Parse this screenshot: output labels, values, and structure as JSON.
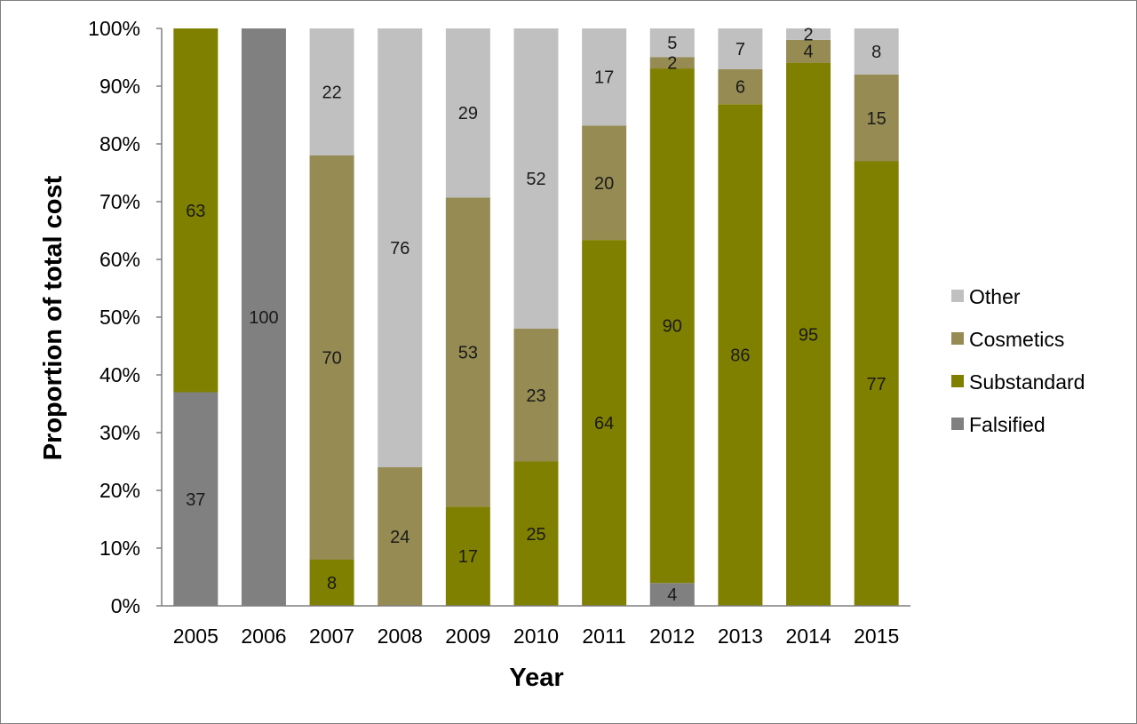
{
  "chart_data": {
    "type": "bar",
    "stacked": true,
    "percent": true,
    "title": "",
    "xlabel": "Year",
    "ylabel": "Proportion of total cost",
    "ylim": [
      0,
      100
    ],
    "yticks": [
      0,
      10,
      20,
      30,
      40,
      50,
      60,
      70,
      80,
      90,
      100
    ],
    "ytick_labels": [
      "0%",
      "10%",
      "20%",
      "30%",
      "40%",
      "50%",
      "60%",
      "70%",
      "80%",
      "90%",
      "100%"
    ],
    "grid": false,
    "legend": "right",
    "categories": [
      "2005",
      "2006",
      "2007",
      "2008",
      "2009",
      "2010",
      "2011",
      "2012",
      "2013",
      "2014",
      "2015"
    ],
    "series": [
      {
        "name": "Falsified",
        "color": "#808080",
        "values": [
          37,
          100,
          0,
          0,
          0,
          0,
          0,
          4,
          0,
          0,
          0
        ],
        "labels": [
          "37",
          "100",
          "",
          "",
          "",
          "",
          "",
          "4",
          "",
          "",
          ""
        ]
      },
      {
        "name": "Substandard",
        "color": "#808000",
        "values": [
          63,
          0,
          8,
          0,
          17,
          25,
          64,
          90,
          86,
          95,
          77
        ],
        "labels": [
          "63",
          "",
          "8",
          "",
          "17",
          "25",
          "64",
          "90",
          "86",
          "95",
          "77"
        ]
      },
      {
        "name": "Cosmetics",
        "color": "#958b53",
        "values": [
          0,
          0,
          70,
          24,
          53,
          23,
          20,
          2,
          6,
          4,
          15
        ],
        "labels": [
          "",
          "",
          "70",
          "24",
          "53",
          "23",
          "20",
          "2",
          "6",
          "4",
          "15"
        ]
      },
      {
        "name": "Other",
        "color": "#c0c0c0",
        "values": [
          0,
          0,
          22,
          76,
          29,
          52,
          17,
          5,
          7,
          2,
          8
        ],
        "labels": [
          "",
          "",
          "22",
          "76",
          "29",
          "52",
          "17",
          "5",
          "7",
          "2",
          "8"
        ]
      }
    ],
    "legend_order": [
      "Other",
      "Cosmetics",
      "Substandard",
      "Falsified"
    ],
    "axis_color": "#7f7f7f"
  }
}
